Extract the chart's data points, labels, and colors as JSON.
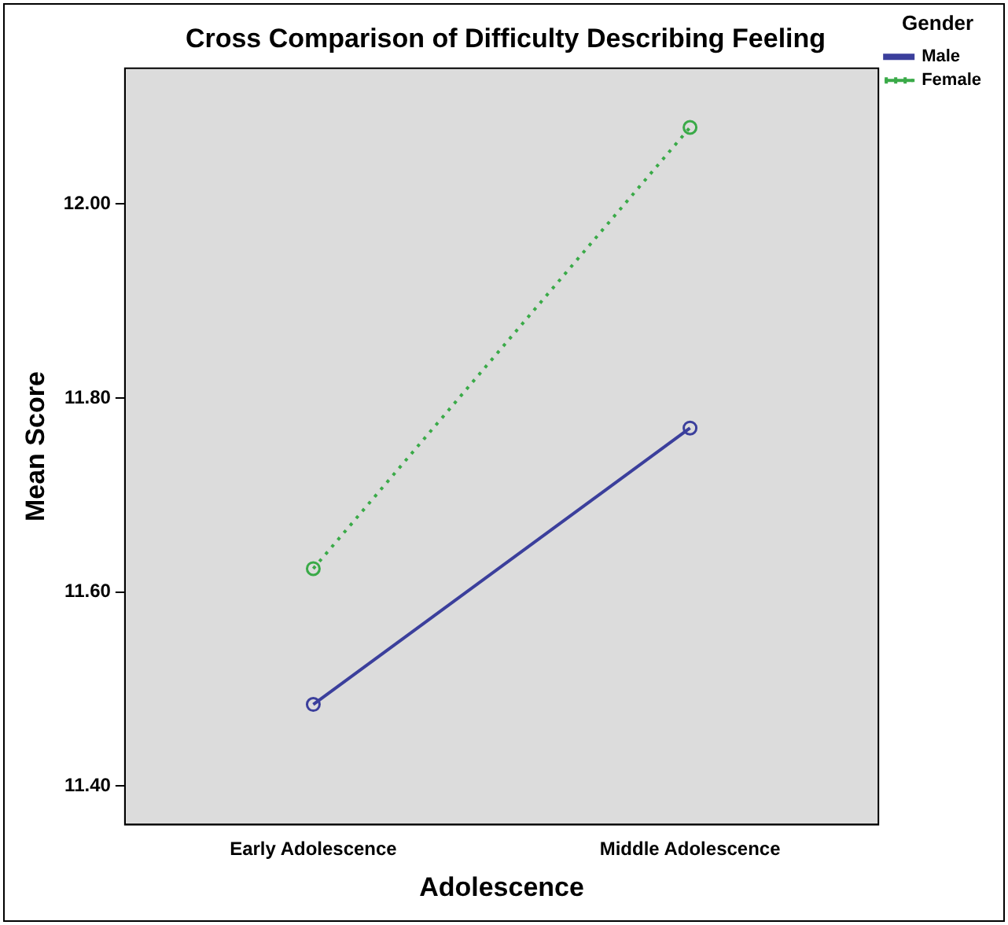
{
  "chart_data": {
    "type": "line",
    "title": "Cross Comparison of Difficulty Describing Feeling",
    "xlabel": "Adolescence",
    "ylabel": "Mean Score",
    "legend_title": "Gender",
    "categories": [
      "Early Adolescence",
      "Middle Adolescence"
    ],
    "series": [
      {
        "name": "Male",
        "color": "#3b3f9c",
        "values": [
          11.484,
          11.769
        ],
        "line_style": "solid"
      },
      {
        "name": "Female",
        "color": "#3aaa48",
        "values": [
          11.624,
          12.079
        ],
        "line_style": "dotted"
      }
    ],
    "ylim": [
      11.36,
      12.14
    ],
    "yticks": [
      {
        "value": 11.4,
        "label": "11.40"
      },
      {
        "value": 11.6,
        "label": "11.60"
      },
      {
        "value": 11.8,
        "label": "11.80"
      },
      {
        "value": 12.0,
        "label": "12.00"
      }
    ],
    "grid": false,
    "legend": "top right",
    "marker": "circle"
  }
}
